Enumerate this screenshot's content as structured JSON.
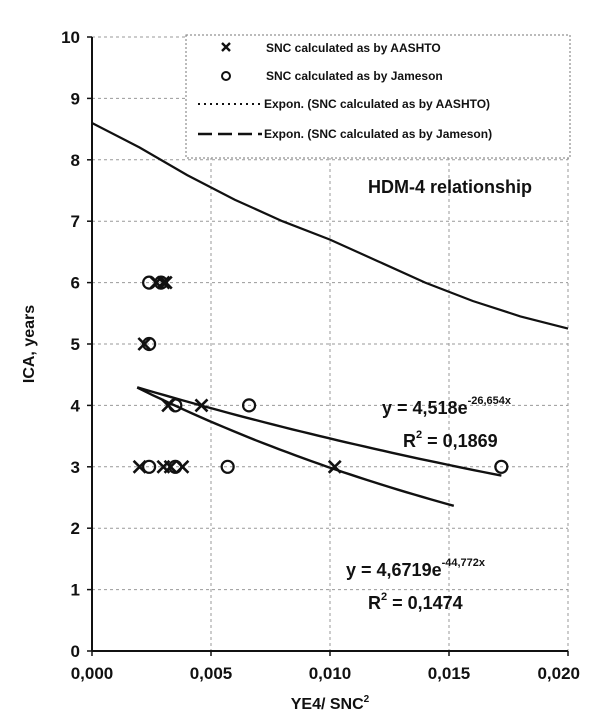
{
  "chart_data": {
    "type": "scatter",
    "title": "",
    "xlabel": "YE4/ SNC",
    "xlabel_sup": "2",
    "ylabel": "ICA, years",
    "xlim": [
      0,
      0.02
    ],
    "ylim": [
      0,
      10
    ],
    "x_ticks": [
      0,
      0.005,
      0.01,
      0.015,
      0.02
    ],
    "x_tick_labels": [
      "0,000",
      "0,005",
      "0,010",
      "0,015",
      "0,020"
    ],
    "y_ticks": [
      0,
      1,
      2,
      3,
      4,
      5,
      6,
      7,
      8,
      9,
      10
    ],
    "y_tick_labels": [
      "0",
      "1",
      "2",
      "3",
      "4",
      "5",
      "6",
      "7",
      "8",
      "9",
      "10"
    ],
    "grid": true,
    "legend_position": "top-right",
    "series": [
      {
        "name": "SNC calculated as by AASHTO",
        "marker": "x",
        "points": [
          [
            0.0022,
            5.0
          ],
          [
            0.0027,
            6.0
          ],
          [
            0.003,
            6.0
          ],
          [
            0.0031,
            6.0
          ],
          [
            0.002,
            3.0
          ],
          [
            0.003,
            3.0
          ],
          [
            0.0033,
            3.0
          ],
          [
            0.0038,
            3.0
          ],
          [
            0.0032,
            4.0
          ],
          [
            0.0046,
            4.0
          ],
          [
            0.0102,
            3.0
          ]
        ]
      },
      {
        "name": "SNC calculated as by Jameson",
        "marker": "circle",
        "points": [
          [
            0.0024,
            6.0
          ],
          [
            0.0029,
            6.0
          ],
          [
            0.0024,
            5.0
          ],
          [
            0.0024,
            3.0
          ],
          [
            0.0035,
            3.0
          ],
          [
            0.0057,
            3.0
          ],
          [
            0.0035,
            4.0
          ],
          [
            0.0066,
            4.0
          ],
          [
            0.0172,
            3.0
          ]
        ]
      },
      {
        "name": "Expon. (SNC calculated as by AASHTO)",
        "marker": "none",
        "line": "dotted",
        "trend": {
          "a": 4.6719,
          "b": -44.772,
          "x_range": [
            0.0019,
            0.0152
          ]
        }
      },
      {
        "name": "Expon. (SNC calculated as by Jameson)",
        "marker": "none",
        "line": "dashed",
        "trend": {
          "a": 4.518,
          "b": -26.654,
          "x_range": [
            0.0019,
            0.0172
          ]
        }
      }
    ],
    "reference_curve": {
      "label": "HDM-4 relationship",
      "points": [
        [
          0.0,
          8.6
        ],
        [
          0.002,
          8.2
        ],
        [
          0.004,
          7.75
        ],
        [
          0.006,
          7.35
        ],
        [
          0.008,
          7.0
        ],
        [
          0.01,
          6.7
        ],
        [
          0.012,
          6.35
        ],
        [
          0.014,
          6.0
        ],
        [
          0.016,
          5.7
        ],
        [
          0.018,
          5.45
        ],
        [
          0.02,
          5.25
        ]
      ]
    },
    "annotations": [
      {
        "id": "jameson-eq",
        "text": "y = 4,518e",
        "exponent": "-26,654x",
        "r2_label": "R",
        "r2_sup": "2",
        "r2_value": " = 0,1869"
      },
      {
        "id": "aashto-eq",
        "text": "y = 4,6719e",
        "exponent": "-44,772x",
        "r2_label": "R",
        "r2_sup": "2",
        "r2_value": " = 0,1474"
      }
    ]
  }
}
